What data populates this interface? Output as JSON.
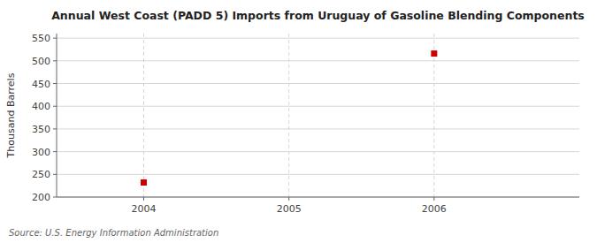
{
  "chart_data": {
    "type": "scatter",
    "title": "Annual West Coast (PADD 5) Imports from Uruguay of Gasoline Blending Components",
    "ylabel": "Thousand Barrels",
    "source": "Source: U.S. Energy Information Administration",
    "x": [
      2004,
      2006
    ],
    "values": [
      232,
      516
    ],
    "xlim": [
      2003.4,
      2007.0
    ],
    "ylim": [
      200,
      560
    ],
    "xticks": [
      2004,
      2005,
      2006
    ],
    "yticks": [
      200,
      250,
      300,
      350,
      400,
      450,
      500,
      550
    ],
    "color": "#cc0000",
    "marker": "square",
    "grid": true
  }
}
